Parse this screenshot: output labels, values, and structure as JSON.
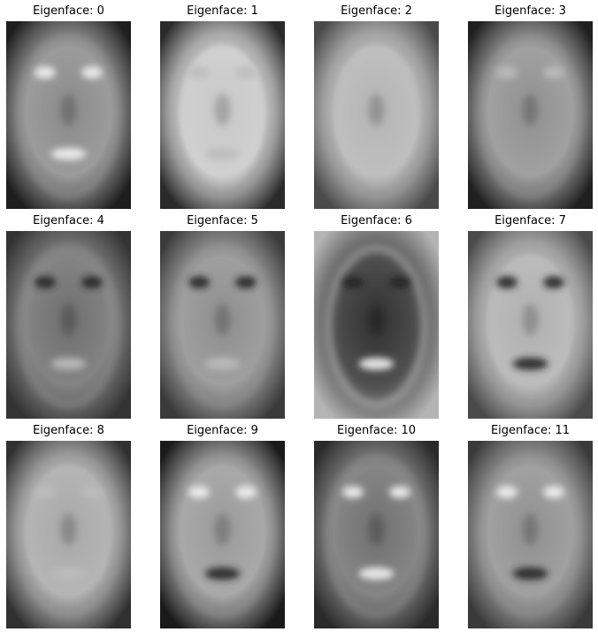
{
  "panels": [
    {
      "title": "Eigenface: 0",
      "base": "#1e1e1e",
      "center": "#8a8a8a",
      "tone": "dark",
      "eyes": "bright",
      "mouth": "bright"
    },
    {
      "title": "Eigenface: 1",
      "base": "#2a2a2a",
      "center": "#c8c8c8",
      "tone": "light",
      "eyes": "soft",
      "mouth": "soft"
    },
    {
      "title": "Eigenface: 2",
      "base": "#4a4a4a",
      "center": "#b4b4b4",
      "tone": "light",
      "eyes": "soft",
      "mouth": "soft"
    },
    {
      "title": "Eigenface: 3",
      "base": "#202020",
      "center": "#909090",
      "tone": "mid",
      "eyes": "soft",
      "mouth": "none"
    },
    {
      "title": "Eigenface: 4",
      "base": "#333333",
      "center": "#6e6e6e",
      "tone": "mid",
      "eyes": "dark",
      "mouth": "soft"
    },
    {
      "title": "Eigenface: 5",
      "base": "#3a3a3a",
      "center": "#8e8e8e",
      "tone": "mid",
      "eyes": "dark",
      "mouth": "soft"
    },
    {
      "title": "Eigenface: 6",
      "base": "#b4b4b4",
      "center": "#303030",
      "tone": "dark",
      "eyes": "dark",
      "mouth": "bright"
    },
    {
      "title": "Eigenface: 7",
      "base": "#4a4a4a",
      "center": "#b0b0b0",
      "tone": "light",
      "eyes": "dark",
      "mouth": "dark"
    },
    {
      "title": "Eigenface: 8",
      "base": "#303030",
      "center": "#a8a8a8",
      "tone": "light",
      "eyes": "soft",
      "mouth": "soft"
    },
    {
      "title": "Eigenface: 9",
      "base": "#1a1a1a",
      "center": "#9a9a9a",
      "tone": "mid",
      "eyes": "bright",
      "mouth": "dark"
    },
    {
      "title": "Eigenface: 10",
      "base": "#2a2a2a",
      "center": "#707070",
      "tone": "mid",
      "eyes": "bright",
      "mouth": "bright"
    },
    {
      "title": "Eigenface: 11",
      "base": "#3a3a3a",
      "center": "#909090",
      "tone": "mid",
      "eyes": "bright",
      "mouth": "dark"
    }
  ]
}
